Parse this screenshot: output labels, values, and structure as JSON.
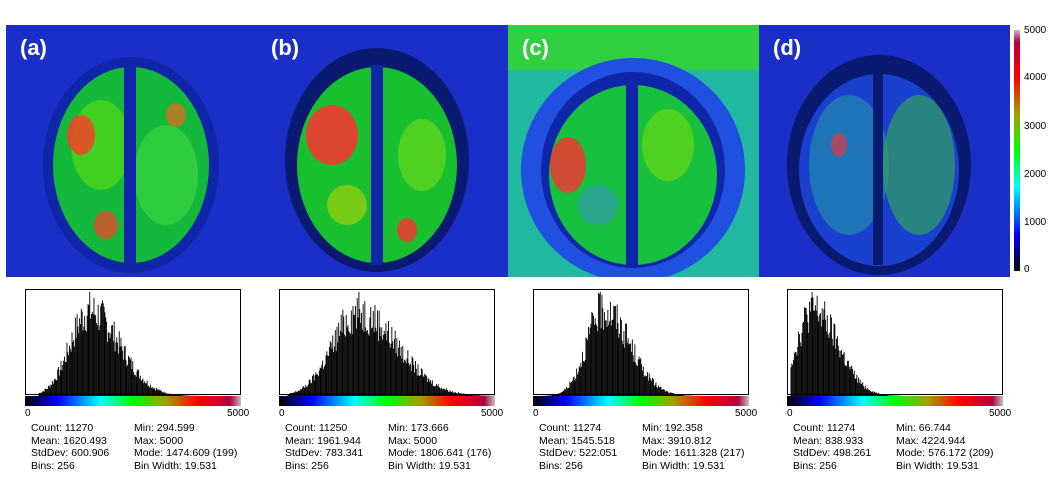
{
  "colors": {
    "jet": [
      "#00007f",
      "#0000ff",
      "#00ffff",
      "#00ff00",
      "#a0a000",
      "#ff0000",
      "#b00020",
      "#c0c0c0"
    ],
    "brain_high": "#ff2a2a",
    "brain_mid": "#00e000",
    "background": "#1a2ec8"
  },
  "colorbar": {
    "ticks": [
      "5000",
      "4000",
      "3000",
      "2000",
      "1000",
      "0"
    ],
    "range": [
      0,
      5000
    ]
  },
  "panels": [
    {
      "label": "(a)",
      "axis_min": "0",
      "axis_max": "5000",
      "stats": {
        "count": "Count: 11270",
        "mean": "Mean: 1620.493",
        "stddev": "StdDev: 600.906",
        "bins": "Bins: 256",
        "min": "Min: 294.599",
        "max": "Max: 5000",
        "mode": "Mode: 1474.609 (199)",
        "binwidth": "Bin Width: 19.531"
      }
    },
    {
      "label": "(b)",
      "axis_min": "0",
      "axis_max": "5000",
      "stats": {
        "count": "Count: 11250",
        "mean": "Mean: 1961.944",
        "stddev": "StdDev: 783.341",
        "bins": "Bins: 256",
        "min": "Min: 173.666",
        "max": "Max: 5000",
        "mode": "Mode: 1806.641 (176)",
        "binwidth": "Bin Width: 19.531"
      }
    },
    {
      "label": "(c)",
      "axis_min": "0",
      "axis_max": "5000",
      "stats": {
        "count": "Count: 11274",
        "mean": "Mean: 1545.518",
        "stddev": "StdDev: 522.051",
        "bins": "Bins: 256",
        "min": "Min: 192.358",
        "max": "Max: 3910.812",
        "mode": "Mode: 1611.328 (217)",
        "binwidth": "Bin Width: 19.531"
      }
    },
    {
      "label": "(d)",
      "axis_min": "0",
      "axis_max": "5000",
      "stats": {
        "count": "Count: 11274",
        "mean": "Mean: 838.933",
        "stddev": "StdDev: 498.261",
        "bins": "Bins: 256",
        "min": "Min: 66.744",
        "max": "Max: 4224.944",
        "mode": "Mode: 576.172 (209)",
        "binwidth": "Bin Width: 19.531"
      }
    }
  ],
  "chart_data": [
    {
      "type": "bar",
      "panel": "(a)",
      "x_range": [
        0,
        5000
      ],
      "bins": 256,
      "bin_width": 19.531,
      "mean": 1620.493,
      "stddev": 600.906,
      "mode": 1474.609,
      "mode_count": 199,
      "min": 294.599,
      "max": 5000
    },
    {
      "type": "bar",
      "panel": "(b)",
      "x_range": [
        0,
        5000
      ],
      "bins": 256,
      "bin_width": 19.531,
      "mean": 1961.944,
      "stddev": 783.341,
      "mode": 1806.641,
      "mode_count": 176,
      "min": 173.666,
      "max": 5000
    },
    {
      "type": "bar",
      "panel": "(c)",
      "x_range": [
        0,
        5000
      ],
      "bins": 256,
      "bin_width": 19.531,
      "mean": 1545.518,
      "stddev": 522.051,
      "mode": 1611.328,
      "mode_count": 217,
      "min": 192.358,
      "max": 3910.812
    },
    {
      "type": "bar",
      "panel": "(d)",
      "x_range": [
        0,
        5000
      ],
      "bins": 256,
      "bin_width": 19.531,
      "mean": 838.933,
      "stddev": 498.261,
      "mode": 576.172,
      "mode_count": 209,
      "min": 66.744,
      "max": 4224.944
    }
  ]
}
